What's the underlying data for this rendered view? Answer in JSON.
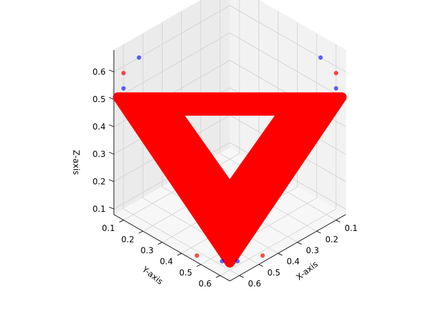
{
  "chart_data": {
    "type": "scatter",
    "projection": "3d",
    "title": "",
    "xlabel": "X-axis",
    "ylabel": "Y-axis",
    "zlabel": "Z-axis",
    "xlim": [
      0.05,
      0.65
    ],
    "ylim": [
      0.05,
      0.65
    ],
    "zlim": [
      0.08,
      0.68
    ],
    "xticks": [
      "0.1",
      "0.2",
      "0.3",
      "0.4",
      "0.5",
      "0.6"
    ],
    "yticks": [
      "0.1",
      "0.2",
      "0.3",
      "0.4",
      "0.5",
      "0.6"
    ],
    "zticks": [
      "0.1",
      "0.2",
      "0.3",
      "0.4",
      "0.5",
      "0.6"
    ],
    "grid": true,
    "series": [
      {
        "color": "#ff0000",
        "marker": "circle",
        "shape": "dense triangular band (triangle with hole)",
        "outer_triangle_vertices": [
          [
            0.63,
            0.05,
            0.5
          ],
          [
            0.05,
            0.63,
            0.5
          ],
          [
            0.63,
            0.63,
            0.13
          ]
        ],
        "inner_triangle_vertices": [
          [
            0.48,
            0.2,
            0.45
          ],
          [
            0.2,
            0.48,
            0.45
          ],
          [
            0.5,
            0.5,
            0.3
          ]
        ],
        "outliers": [
          [
            0.08,
            0.08,
            0.7
          ],
          [
            0.63,
            0.08,
            0.6
          ],
          [
            0.08,
            0.63,
            0.6
          ],
          [
            0.48,
            0.05,
            0.43
          ],
          [
            0.05,
            0.48,
            0.43
          ],
          [
            0.45,
            0.62,
            0.08
          ],
          [
            0.62,
            0.45,
            0.08
          ]
        ]
      },
      {
        "color": "#0000ff",
        "marker": "circle",
        "points": [
          [
            0.6,
            0.05,
            0.52
          ],
          [
            0.05,
            0.6,
            0.52
          ],
          [
            0.52,
            0.05,
            0.6
          ],
          [
            0.05,
            0.52,
            0.6
          ],
          [
            0.63,
            0.59,
            0.12
          ],
          [
            0.59,
            0.63,
            0.12
          ]
        ]
      }
    ]
  }
}
